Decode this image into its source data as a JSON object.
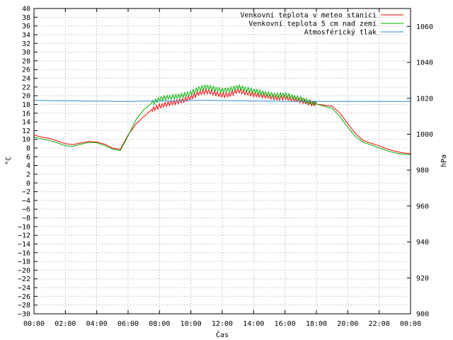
{
  "chart_data": {
    "type": "line",
    "xlabel": "Čas",
    "ylabel_left": "°C",
    "ylabel_right": "hPa",
    "x_ticks": [
      "00:00",
      "02:00",
      "04:00",
      "06:00",
      "08:00",
      "10:00",
      "12:00",
      "14:00",
      "16:00",
      "18:00",
      "20:00",
      "22:00",
      "00:00"
    ],
    "xlim_hours": [
      0,
      24
    ],
    "ylim_left": [
      -30,
      40
    ],
    "ylim_right": [
      900,
      1070
    ],
    "y_left_ticks": [
      40,
      38,
      36,
      34,
      32,
      30,
      28,
      26,
      24,
      22,
      20,
      18,
      16,
      14,
      12,
      10,
      8,
      6,
      4,
      2,
      0,
      -2,
      -4,
      -6,
      -8,
      -10,
      -12,
      -14,
      -16,
      -18,
      -20,
      -22,
      -24,
      -26,
      -28,
      -30
    ],
    "y_right_ticks": [
      1060,
      1040,
      1020,
      1000,
      980,
      960,
      940,
      920,
      900
    ],
    "grid": true,
    "legend_position": "top-right",
    "x_hours": [
      0,
      0.5,
      1,
      1.5,
      2,
      2.5,
      3,
      3.5,
      4,
      4.5,
      5,
      5.5,
      6,
      6.5,
      7,
      7.5,
      8,
      8.5,
      9,
      9.5,
      10,
      10.5,
      11,
      11.5,
      12,
      12.5,
      13,
      13.5,
      14,
      14.5,
      15,
      15.5,
      16,
      16.5,
      17,
      17.5,
      18,
      18.5,
      19,
      19.5,
      20,
      20.5,
      21,
      21.5,
      22,
      22.5,
      23,
      23.5,
      24
    ],
    "series": [
      {
        "name": "Venkovní teplota v meteo stanici",
        "color": "#ff0000",
        "axis": "left",
        "values": [
          11,
          10.5,
          10.2,
          9.6,
          9,
          8.8,
          9.2,
          9.5,
          9.4,
          8.9,
          8,
          7.7,
          11,
          13.5,
          15.2,
          16.8,
          17.6,
          18.1,
          18.5,
          18.9,
          19.6,
          20.6,
          21,
          20.6,
          20.1,
          20.3,
          21.2,
          20.7,
          20.3,
          20.1,
          19.8,
          19.5,
          19.6,
          19.2,
          18.9,
          18.4,
          18.1,
          17.8,
          17.6,
          16,
          13.6,
          11.3,
          9.7,
          9.1,
          8.5,
          7.8,
          7.3,
          6.9,
          6.7
        ]
      },
      {
        "name": "Venkovní teplota 5 cm nad zemí",
        "color": "#00b000",
        "axis": "left",
        "values": [
          10.5,
          10.1,
          9.7,
          9.2,
          8.5,
          8.4,
          8.9,
          9.3,
          9.2,
          8.6,
          7.8,
          7.4,
          10.8,
          14.5,
          16.8,
          18.3,
          19.2,
          19.6,
          19.8,
          20.1,
          20.6,
          21.6,
          22,
          21.6,
          21.2,
          21.4,
          22,
          21.5,
          21.1,
          20.7,
          20.3,
          20.1,
          20.2,
          19.7,
          19.3,
          18.6,
          18.1,
          17.6,
          17.1,
          15.2,
          12.8,
          10.6,
          9.3,
          8.7,
          8,
          7.4,
          6.9,
          6.6,
          6.5
        ]
      },
      {
        "name": "Atmosférický tlak",
        "color": "#2a8ad4",
        "axis": "right",
        "values": [
          1018.8,
          1018.8,
          1018.7,
          1018.7,
          1018.6,
          1018.6,
          1018.5,
          1018.5,
          1018.4,
          1018.4,
          1018.3,
          1018.3,
          1018.3,
          1018.3,
          1018.4,
          1018.4,
          1018.5,
          1018.5,
          1018.6,
          1018.7,
          1018.8,
          1018.8,
          1018.8,
          1018.8,
          1018.7,
          1018.7,
          1018.6,
          1018.6,
          1018.5,
          1018.5,
          1018.4,
          1018.4,
          1018.3,
          1018.3,
          1018.3,
          1018.3,
          1018.3,
          1018.3,
          1018.3,
          1018.3,
          1018.3,
          1018.3,
          1018.3,
          1018.3,
          1018.3,
          1018.3,
          1018.3,
          1018.3,
          1018.3
        ]
      }
    ]
  }
}
